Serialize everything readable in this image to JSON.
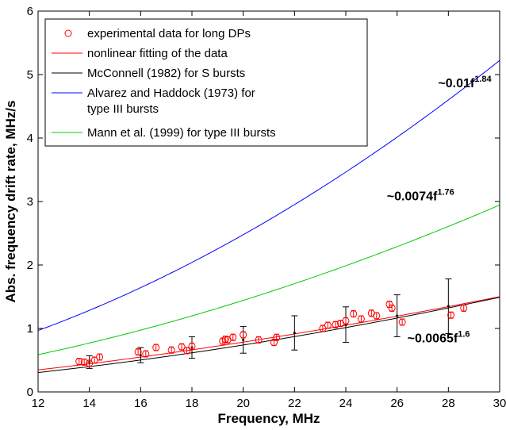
{
  "chart_data": {
    "type": "line",
    "xlabel": "Frequency, MHz",
    "ylabel": "Abs. frequency drift rate, MHz/s",
    "xlim": [
      12,
      30
    ],
    "ylim": [
      0,
      6
    ],
    "xticks": [
      "12",
      "14",
      "16",
      "18",
      "20",
      "22",
      "24",
      "26",
      "28",
      "30"
    ],
    "yticks": [
      "0",
      "1",
      "2",
      "3",
      "4",
      "5",
      "6"
    ],
    "grid": false,
    "legend_position": "top-left",
    "legend": [
      {
        "label": "experimental data for long DPs",
        "color": "#ff0000",
        "marker": "circle"
      },
      {
        "label": " nonlinear fitting of the data",
        "color": "#ff0000",
        "marker": "line"
      },
      {
        "label": "McConnell (1982) for S bursts",
        "color": "#000000",
        "marker": "line"
      },
      {
        "label": "Alvarez and Haddock (1973) for",
        "label2": "type III bursts",
        "color": "#0000ff",
        "marker": "line"
      },
      {
        "label": "Mann et al. (1999) for type III bursts",
        "color": "#00cc00",
        "marker": "line"
      }
    ],
    "series": [
      {
        "name": "experimental data for long DPs",
        "color": "#ff0000",
        "kind": "scatter",
        "points": [
          [
            13.6,
            0.48,
            0.05
          ],
          [
            13.8,
            0.47,
            0.05
          ],
          [
            14.0,
            0.45,
            0.05
          ],
          [
            14.2,
            0.5,
            0.05
          ],
          [
            14.4,
            0.55,
            0.05
          ],
          [
            15.9,
            0.63,
            0.05
          ],
          [
            16.2,
            0.6,
            0.05
          ],
          [
            16.6,
            0.7,
            0.05
          ],
          [
            17.2,
            0.66,
            0.05
          ],
          [
            17.6,
            0.71,
            0.05
          ],
          [
            17.8,
            0.65,
            0.05
          ],
          [
            18.0,
            0.72,
            0.05
          ],
          [
            19.2,
            0.8,
            0.05
          ],
          [
            19.3,
            0.83,
            0.05
          ],
          [
            19.4,
            0.82,
            0.05
          ],
          [
            19.6,
            0.86,
            0.05
          ],
          [
            20.0,
            0.9,
            0.05
          ],
          [
            20.6,
            0.82,
            0.05
          ],
          [
            21.2,
            0.78,
            0.05
          ],
          [
            21.3,
            0.86,
            0.05
          ],
          [
            23.1,
            1.0,
            0.05
          ],
          [
            23.3,
            1.05,
            0.05
          ],
          [
            23.6,
            1.06,
            0.05
          ],
          [
            23.8,
            1.08,
            0.05
          ],
          [
            24.0,
            1.12,
            0.05
          ],
          [
            24.3,
            1.23,
            0.05
          ],
          [
            24.6,
            1.15,
            0.05
          ],
          [
            25.0,
            1.24,
            0.05
          ],
          [
            25.2,
            1.2,
            0.05
          ],
          [
            25.7,
            1.38,
            0.05
          ],
          [
            25.8,
            1.32,
            0.05
          ],
          [
            26.2,
            1.1,
            0.05
          ],
          [
            28.1,
            1.21,
            0.05
          ],
          [
            28.6,
            1.32,
            0.05
          ]
        ]
      },
      {
        "name": " nonlinear fitting of the data",
        "color": "#ff0000",
        "kind": "power",
        "a": 0.0065,
        "b": 1.6
      },
      {
        "name": "McConnell (1982) for S bursts",
        "color": "#000000",
        "kind": "power",
        "a": 0.00415,
        "b": 1.73,
        "errorbars": [
          [
            14,
            0.47,
            0.1
          ],
          [
            16,
            0.58,
            0.12
          ],
          [
            18,
            0.7,
            0.17
          ],
          [
            20,
            0.82,
            0.21
          ],
          [
            22,
            0.93,
            0.27
          ],
          [
            24,
            1.06,
            0.28
          ],
          [
            26,
            1.2,
            0.33
          ],
          [
            28,
            1.35,
            0.43
          ]
        ]
      },
      {
        "name": "Alvarez and Haddock (1973) for type III bursts",
        "color": "#0000ff",
        "kind": "power",
        "a": 0.01,
        "b": 1.84
      },
      {
        "name": "Mann et al. (1999) for type III bursts",
        "color": "#00cc00",
        "kind": "power",
        "a": 0.0074,
        "b": 1.76
      }
    ],
    "annotations": [
      {
        "base": "~0.01f",
        "sup": "1.84",
        "at": [
          27.6,
          4.8
        ]
      },
      {
        "base": "~0.0074f",
        "sup": "1.76",
        "at": [
          25.6,
          3.02
        ]
      },
      {
        "base": "~0.0065f",
        "sup": "1.6",
        "at": [
          26.4,
          0.78
        ]
      }
    ]
  }
}
